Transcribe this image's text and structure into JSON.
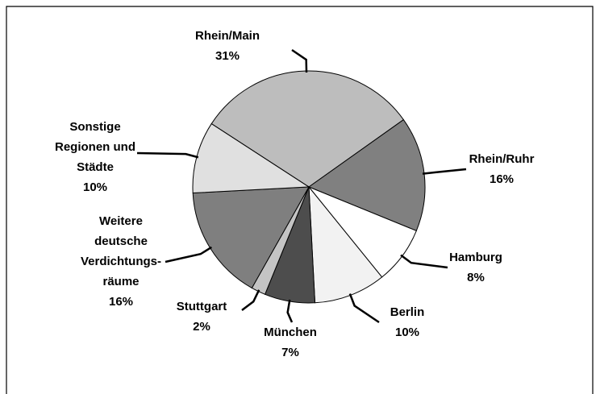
{
  "chart_data": {
    "type": "pie",
    "categories": [
      "Rhein/Main",
      "Rhein/Ruhr",
      "Hamburg",
      "Berlin",
      "München",
      "Stuttgart",
      "Weitere\ndeutsche\nVerdichtungs-\nräume",
      "Sonstige\nRegionen und\nStädte"
    ],
    "values": [
      31,
      16,
      8,
      10,
      7,
      2,
      16,
      10
    ],
    "value_labels": [
      "31%",
      "16%",
      "8%",
      "10%",
      "7%",
      "2%",
      "16%",
      "10%"
    ],
    "colors": [
      "#bdbdbd",
      "#808080",
      "#ffffff",
      "#f2f2f2",
      "#4d4d4d",
      "#c4c4c4",
      "#7f7f7f",
      "#e0e0e0"
    ]
  }
}
